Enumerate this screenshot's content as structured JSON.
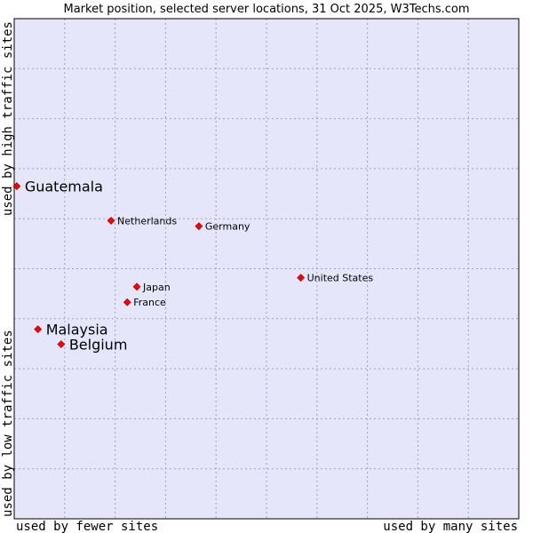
{
  "chart_data": {
    "type": "scatter",
    "title": "Market position, selected server locations, 31 Oct 2025, W3Techs.com",
    "xlabel_left": "used by fewer sites",
    "xlabel_right": "used by many sites",
    "ylabel_bottom": "used by low traffic sites",
    "ylabel_top": "used by high traffic sites",
    "xlim": [
      0,
      100
    ],
    "ylim": [
      0,
      100
    ],
    "grid": true,
    "grid_divisions": {
      "x": 10,
      "y": 10
    },
    "colors": {
      "plot_background": "#e6e6fa",
      "grid": "#a0a0b8",
      "border": "#000000",
      "point": "#ff0000",
      "point_outline": "#990000",
      "text": "#000000"
    },
    "points": [
      {
        "name": "Guatemala",
        "x": 0.5,
        "y": 66.5,
        "highlight": true
      },
      {
        "name": "Netherlands",
        "x": 19.2,
        "y": 59.6,
        "highlight": false
      },
      {
        "name": "Germany",
        "x": 36.6,
        "y": 58.5,
        "highlight": false
      },
      {
        "name": "United States",
        "x": 56.8,
        "y": 48.2,
        "highlight": false
      },
      {
        "name": "Japan",
        "x": 24.3,
        "y": 46.4,
        "highlight": false
      },
      {
        "name": "France",
        "x": 22.4,
        "y": 43.3,
        "highlight": false
      },
      {
        "name": "Malaysia",
        "x": 4.7,
        "y": 37.9,
        "highlight": true
      },
      {
        "name": "Belgium",
        "x": 9.3,
        "y": 34.9,
        "highlight": true
      }
    ]
  }
}
